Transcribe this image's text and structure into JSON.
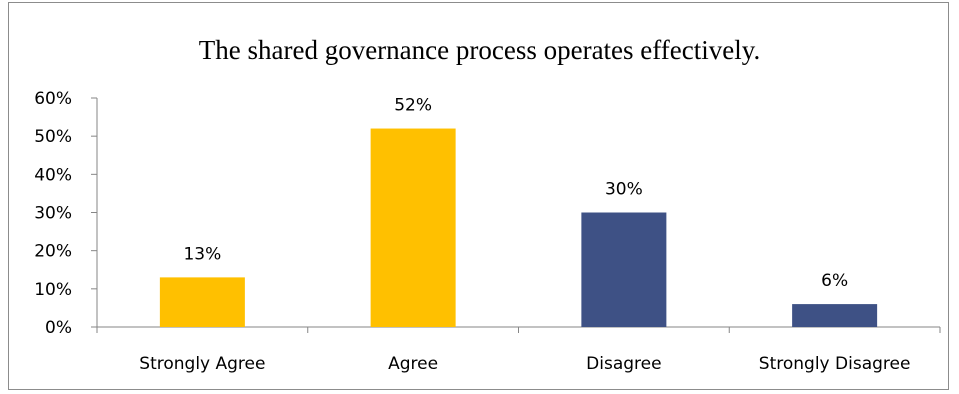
{
  "chart_data": {
    "type": "bar",
    "title": "The shared governance process operates effectively.",
    "categories": [
      "Strongly Agree",
      "Agree",
      "Disagree",
      "Strongly Disagree"
    ],
    "values": [
      13,
      52,
      30,
      6
    ],
    "data_labels": [
      "13%",
      "52%",
      "30%",
      "6%"
    ],
    "colors": [
      "#FFC000",
      "#FFC000",
      "#3E5185",
      "#3E5185"
    ],
    "ylim": [
      0,
      60
    ],
    "yticks": [
      0,
      10,
      20,
      30,
      40,
      50,
      60
    ],
    "ytick_labels": [
      "0%",
      "10%",
      "20%",
      "30%",
      "40%",
      "50%",
      "60%"
    ],
    "xlabel": "",
    "ylabel": "",
    "grid": false,
    "legend": "none"
  }
}
